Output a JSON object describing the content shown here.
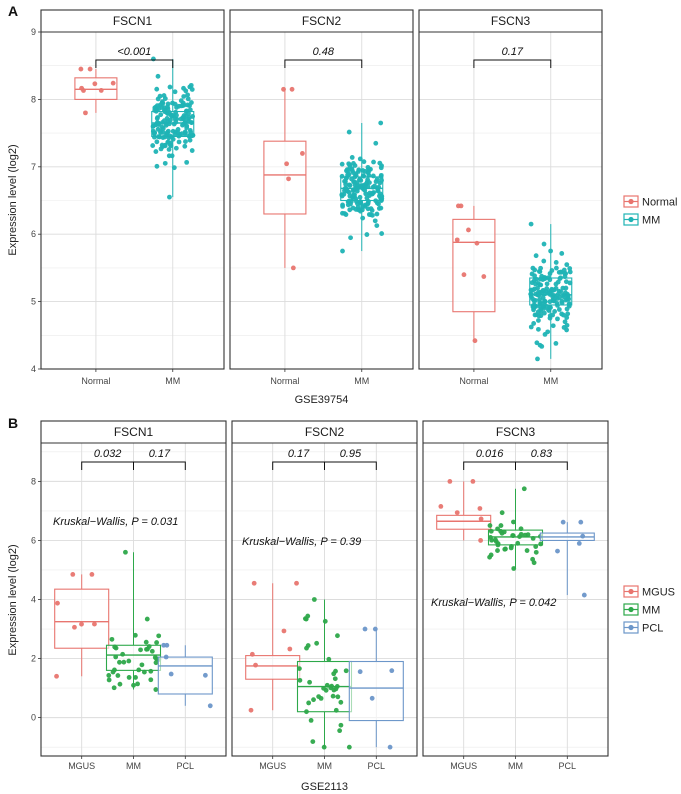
{
  "colors": {
    "Normal": "#E8756F",
    "MM_A": "#1FB3B5",
    "MGUS": "#E8756F",
    "MM_B": "#2DA84A",
    "PCL": "#6C96C9"
  },
  "chart_data": [
    {
      "type": "box",
      "label": "A",
      "dataset": "GSE39754",
      "ylabel": "Expression level (log2)",
      "ylim": [
        4,
        9
      ],
      "yticks": [
        "4",
        "5",
        "6",
        "7",
        "8",
        "9"
      ],
      "categories": [
        "Normal",
        "MM"
      ],
      "legend": {
        "entries": [
          "Normal",
          "MM"
        ],
        "position": "right"
      },
      "panels": [
        {
          "title": "FSCN1",
          "boxes": [
            {
              "group": "Normal",
              "q1": 8.0,
              "median": 8.15,
              "q3": 8.32,
              "whisker_low": 7.8,
              "whisker_high": 8.45,
              "n": 8
            },
            {
              "group": "MM",
              "q1": 7.45,
              "median": 7.65,
              "q3": 7.82,
              "whisker_low": 6.55,
              "whisker_high": 8.6,
              "n": 170
            }
          ],
          "comparisons": [
            {
              "groups": [
                "Normal",
                "MM"
              ],
              "p": "<0.001"
            }
          ]
        },
        {
          "title": "FSCN2",
          "boxes": [
            {
              "group": "Normal",
              "q1": 6.3,
              "median": 6.88,
              "q3": 7.38,
              "whisker_low": 5.5,
              "whisker_high": 8.15,
              "n": 6
            },
            {
              "group": "MM",
              "q1": 6.5,
              "median": 6.68,
              "q3": 6.85,
              "whisker_low": 5.75,
              "whisker_high": 7.65,
              "n": 170
            }
          ],
          "comparisons": [
            {
              "groups": [
                "Normal",
                "MM"
              ],
              "p": "0.48"
            }
          ]
        },
        {
          "title": "FSCN3",
          "boxes": [
            {
              "group": "Normal",
              "q1": 4.85,
              "median": 5.88,
              "q3": 6.22,
              "whisker_low": 4.42,
              "whisker_high": 6.42,
              "n": 8
            },
            {
              "group": "MM",
              "q1": 4.95,
              "median": 5.1,
              "q3": 5.35,
              "whisker_low": 4.15,
              "whisker_high": 6.15,
              "n": 170
            }
          ],
          "comparisons": [
            {
              "groups": [
                "Normal",
                "MM"
              ],
              "p": "0.17"
            }
          ]
        }
      ]
    },
    {
      "type": "box",
      "label": "B",
      "dataset": "GSE2113",
      "ylabel": "Expression level (log2)",
      "ylim": [
        -1.3,
        9.3
      ],
      "yticks": [
        "0",
        "2",
        "4",
        "6",
        "8"
      ],
      "categories": [
        "MGUS",
        "MM",
        "PCL"
      ],
      "legend": {
        "entries": [
          "MGUS",
          "MM",
          "PCL"
        ],
        "position": "right"
      },
      "panels": [
        {
          "title": "FSCN1",
          "kruskal": "Kruskal−Wallis, P = 0.031",
          "boxes": [
            {
              "group": "MGUS",
              "q1": 2.35,
              "median": 3.25,
              "q3": 4.35,
              "whisker_low": 1.4,
              "whisker_high": 4.85,
              "n": 7
            },
            {
              "group": "MM",
              "q1": 1.6,
              "median": 2.12,
              "q3": 2.45,
              "whisker_low": 0.95,
              "whisker_high": 5.6,
              "n": 40
            },
            {
              "group": "PCL",
              "q1": 0.8,
              "median": 1.75,
              "q3": 2.05,
              "whisker_low": 0.4,
              "whisker_high": 2.45,
              "n": 6
            }
          ],
          "comparisons": [
            {
              "groups": [
                "MGUS",
                "MM"
              ],
              "p": "0.032"
            },
            {
              "groups": [
                "MM",
                "PCL"
              ],
              "p": "0.17"
            }
          ]
        },
        {
          "title": "FSCN2",
          "kruskal": "Kruskal−Wallis, P = 0.39",
          "boxes": [
            {
              "group": "MGUS",
              "q1": 1.3,
              "median": 1.75,
              "q3": 2.1,
              "whisker_low": 0.25,
              "whisker_high": 4.55,
              "n": 7
            },
            {
              "group": "MM",
              "q1": 0.2,
              "median": 1.05,
              "q3": 1.9,
              "whisker_low": -1.0,
              "whisker_high": 4.0,
              "n": 40
            },
            {
              "group": "PCL",
              "q1": -0.1,
              "median": 1.0,
              "q3": 1.9,
              "whisker_low": -1.0,
              "whisker_high": 3.0,
              "n": 6
            }
          ],
          "comparisons": [
            {
              "groups": [
                "MGUS",
                "MM"
              ],
              "p": "0.17"
            },
            {
              "groups": [
                "MM",
                "PCL"
              ],
              "p": "0.95"
            }
          ]
        },
        {
          "title": "FSCN3",
          "kruskal": "Kruskal−Wallis, P = 0.042",
          "boxes": [
            {
              "group": "MGUS",
              "q1": 6.38,
              "median": 6.65,
              "q3": 6.85,
              "whisker_low": 6.0,
              "whisker_high": 8.0,
              "n": 7
            },
            {
              "group": "MM",
              "q1": 5.85,
              "median": 6.12,
              "q3": 6.35,
              "whisker_low": 5.05,
              "whisker_high": 7.75,
              "n": 40
            },
            {
              "group": "PCL",
              "q1": 6.0,
              "median": 6.12,
              "q3": 6.25,
              "whisker_low": 4.15,
              "whisker_high": 6.62,
              "n": 6
            }
          ],
          "comparisons": [
            {
              "groups": [
                "MGUS",
                "MM"
              ],
              "p": "0.016"
            },
            {
              "groups": [
                "MM",
                "PCL"
              ],
              "p": "0.83"
            }
          ]
        }
      ]
    }
  ]
}
